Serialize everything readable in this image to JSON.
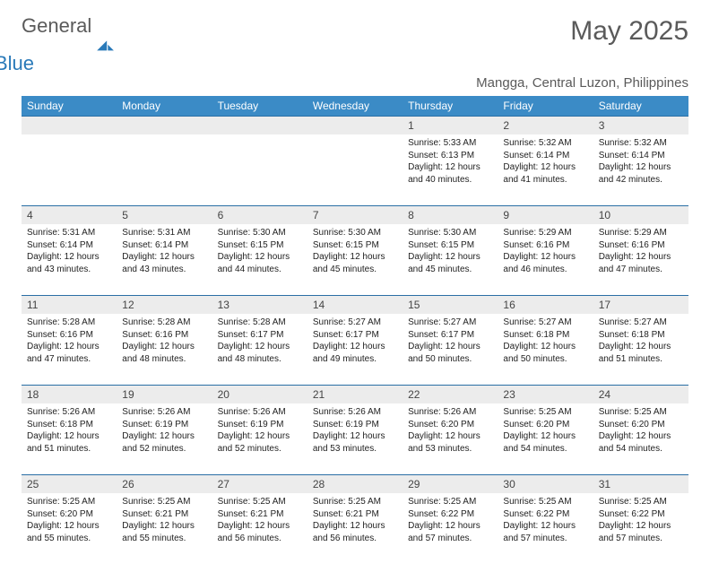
{
  "brand": {
    "word1": "General",
    "word2": "Blue",
    "color1": "#5a5a5a",
    "color2": "#2a7ab9"
  },
  "title": "May 2025",
  "subtitle": "Mangga, Central Luzon, Philippines",
  "colors": {
    "header_bg": "#3b8bc6",
    "header_text": "#ffffff",
    "daynum_bg": "#ececec",
    "row_divider": "#2a6fa5",
    "text": "#222222",
    "muted": "#5a5a5a"
  },
  "typography": {
    "title_fontsize": 30,
    "subtitle_fontsize": 15,
    "header_fontsize": 12,
    "daynum_fontsize": 12,
    "cell_fontsize": 10
  },
  "weekdays": [
    "Sunday",
    "Monday",
    "Tuesday",
    "Wednesday",
    "Thursday",
    "Friday",
    "Saturday"
  ],
  "weeks": [
    {
      "nums": [
        "",
        "",
        "",
        "",
        "1",
        "2",
        "3"
      ],
      "cells": [
        null,
        null,
        null,
        null,
        {
          "sunrise": "5:33 AM",
          "sunset": "6:13 PM",
          "daylight": "12 hours and 40 minutes."
        },
        {
          "sunrise": "5:32 AM",
          "sunset": "6:14 PM",
          "daylight": "12 hours and 41 minutes."
        },
        {
          "sunrise": "5:32 AM",
          "sunset": "6:14 PM",
          "daylight": "12 hours and 42 minutes."
        }
      ]
    },
    {
      "nums": [
        "4",
        "5",
        "6",
        "7",
        "8",
        "9",
        "10"
      ],
      "cells": [
        {
          "sunrise": "5:31 AM",
          "sunset": "6:14 PM",
          "daylight": "12 hours and 43 minutes."
        },
        {
          "sunrise": "5:31 AM",
          "sunset": "6:14 PM",
          "daylight": "12 hours and 43 minutes."
        },
        {
          "sunrise": "5:30 AM",
          "sunset": "6:15 PM",
          "daylight": "12 hours and 44 minutes."
        },
        {
          "sunrise": "5:30 AM",
          "sunset": "6:15 PM",
          "daylight": "12 hours and 45 minutes."
        },
        {
          "sunrise": "5:30 AM",
          "sunset": "6:15 PM",
          "daylight": "12 hours and 45 minutes."
        },
        {
          "sunrise": "5:29 AM",
          "sunset": "6:16 PM",
          "daylight": "12 hours and 46 minutes."
        },
        {
          "sunrise": "5:29 AM",
          "sunset": "6:16 PM",
          "daylight": "12 hours and 47 minutes."
        }
      ]
    },
    {
      "nums": [
        "11",
        "12",
        "13",
        "14",
        "15",
        "16",
        "17"
      ],
      "cells": [
        {
          "sunrise": "5:28 AM",
          "sunset": "6:16 PM",
          "daylight": "12 hours and 47 minutes."
        },
        {
          "sunrise": "5:28 AM",
          "sunset": "6:16 PM",
          "daylight": "12 hours and 48 minutes."
        },
        {
          "sunrise": "5:28 AM",
          "sunset": "6:17 PM",
          "daylight": "12 hours and 48 minutes."
        },
        {
          "sunrise": "5:27 AM",
          "sunset": "6:17 PM",
          "daylight": "12 hours and 49 minutes."
        },
        {
          "sunrise": "5:27 AM",
          "sunset": "6:17 PM",
          "daylight": "12 hours and 50 minutes."
        },
        {
          "sunrise": "5:27 AM",
          "sunset": "6:18 PM",
          "daylight": "12 hours and 50 minutes."
        },
        {
          "sunrise": "5:27 AM",
          "sunset": "6:18 PM",
          "daylight": "12 hours and 51 minutes."
        }
      ]
    },
    {
      "nums": [
        "18",
        "19",
        "20",
        "21",
        "22",
        "23",
        "24"
      ],
      "cells": [
        {
          "sunrise": "5:26 AM",
          "sunset": "6:18 PM",
          "daylight": "12 hours and 51 minutes."
        },
        {
          "sunrise": "5:26 AM",
          "sunset": "6:19 PM",
          "daylight": "12 hours and 52 minutes."
        },
        {
          "sunrise": "5:26 AM",
          "sunset": "6:19 PM",
          "daylight": "12 hours and 52 minutes."
        },
        {
          "sunrise": "5:26 AM",
          "sunset": "6:19 PM",
          "daylight": "12 hours and 53 minutes."
        },
        {
          "sunrise": "5:26 AM",
          "sunset": "6:20 PM",
          "daylight": "12 hours and 53 minutes."
        },
        {
          "sunrise": "5:25 AM",
          "sunset": "6:20 PM",
          "daylight": "12 hours and 54 minutes."
        },
        {
          "sunrise": "5:25 AM",
          "sunset": "6:20 PM",
          "daylight": "12 hours and 54 minutes."
        }
      ]
    },
    {
      "nums": [
        "25",
        "26",
        "27",
        "28",
        "29",
        "30",
        "31"
      ],
      "cells": [
        {
          "sunrise": "5:25 AM",
          "sunset": "6:20 PM",
          "daylight": "12 hours and 55 minutes."
        },
        {
          "sunrise": "5:25 AM",
          "sunset": "6:21 PM",
          "daylight": "12 hours and 55 minutes."
        },
        {
          "sunrise": "5:25 AM",
          "sunset": "6:21 PM",
          "daylight": "12 hours and 56 minutes."
        },
        {
          "sunrise": "5:25 AM",
          "sunset": "6:21 PM",
          "daylight": "12 hours and 56 minutes."
        },
        {
          "sunrise": "5:25 AM",
          "sunset": "6:22 PM",
          "daylight": "12 hours and 57 minutes."
        },
        {
          "sunrise": "5:25 AM",
          "sunset": "6:22 PM",
          "daylight": "12 hours and 57 minutes."
        },
        {
          "sunrise": "5:25 AM",
          "sunset": "6:22 PM",
          "daylight": "12 hours and 57 minutes."
        }
      ]
    }
  ],
  "labels": {
    "sunrise": "Sunrise: ",
    "sunset": "Sunset: ",
    "daylight": "Daylight: "
  }
}
